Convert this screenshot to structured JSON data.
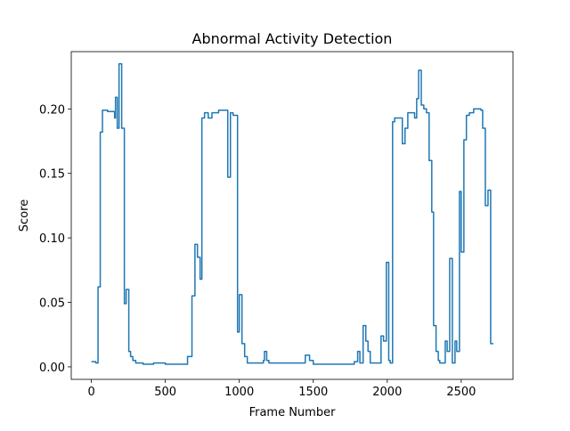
{
  "chart_data": {
    "type": "line",
    "title": "Abnormal Activity Detection",
    "x_label": "Frame Number",
    "y_label": "Score",
    "xlim": [
      -136,
      2850
    ],
    "ylim": [
      -0.0097,
      0.2444
    ],
    "xticks": [
      0,
      500,
      1000,
      1500,
      2000,
      2500
    ],
    "yticks": [
      {
        "value": 0,
        "label": "0.00"
      },
      {
        "value": 0.05,
        "label": "0.05"
      },
      {
        "value": 0.1,
        "label": "0.10"
      },
      {
        "value": 0.15,
        "label": "0.15"
      },
      {
        "value": 0.2,
        "label": "0.20"
      }
    ],
    "grid": false,
    "series": [
      {
        "color": "#1f77b4",
        "x": [
          0,
          30,
          30,
          45,
          45,
          60,
          60,
          75,
          75,
          110,
          110,
          157,
          157,
          163,
          163,
          175,
          175,
          187,
          187,
          205,
          205,
          223,
          223,
          235,
          235,
          253,
          253,
          265,
          265,
          280,
          280,
          300,
          300,
          350,
          350,
          420,
          420,
          500,
          500,
          650,
          650,
          680,
          680,
          700,
          700,
          717,
          717,
          735,
          735,
          747,
          747,
          765,
          765,
          790,
          790,
          815,
          815,
          860,
          860,
          922,
          922,
          940,
          940,
          958,
          958,
          988,
          988,
          1000,
          1000,
          1018,
          1018,
          1036,
          1036,
          1054,
          1054,
          1163,
          1163,
          1170,
          1170,
          1185,
          1185,
          1200,
          1200,
          1446,
          1446,
          1475,
          1475,
          1500,
          1500,
          1777,
          1777,
          1800,
          1800,
          1815,
          1815,
          1837,
          1837,
          1855,
          1855,
          1870,
          1870,
          1885,
          1885,
          1958,
          1958,
          1975,
          1975,
          1994,
          1994,
          2010,
          2010,
          2020,
          2020,
          2036,
          2036,
          2050,
          2050,
          2102,
          2102,
          2120,
          2120,
          2139,
          2139,
          2185,
          2185,
          2199,
          2199,
          2212,
          2212,
          2230,
          2230,
          2247,
          2247,
          2265,
          2265,
          2283,
          2283,
          2301,
          2301,
          2313,
          2313,
          2330,
          2330,
          2345,
          2345,
          2355,
          2355,
          2392,
          2392,
          2405,
          2405,
          2422,
          2422,
          2440,
          2440,
          2458,
          2458,
          2470,
          2470,
          2488,
          2488,
          2500,
          2500,
          2518,
          2518,
          2535,
          2535,
          2555,
          2555,
          2584,
          2584,
          2633,
          2633,
          2645,
          2645,
          2663,
          2663,
          2681,
          2681,
          2699,
          2699,
          2717
        ],
        "values": [
          0.004,
          0.004,
          0.003,
          0.003,
          0.062,
          0.062,
          0.182,
          0.182,
          0.199,
          0.199,
          0.198,
          0.198,
          0.193,
          0.193,
          0.209,
          0.209,
          0.185,
          0.185,
          0.235,
          0.235,
          0.185,
          0.185,
          0.049,
          0.049,
          0.06,
          0.06,
          0.012,
          0.012,
          0.008,
          0.008,
          0.005,
          0.005,
          0.003,
          0.003,
          0.002,
          0.002,
          0.003,
          0.003,
          0.002,
          0.002,
          0.008,
          0.008,
          0.055,
          0.055,
          0.095,
          0.095,
          0.085,
          0.085,
          0.068,
          0.068,
          0.193,
          0.193,
          0.197,
          0.197,
          0.193,
          0.193,
          0.197,
          0.197,
          0.199,
          0.199,
          0.147,
          0.147,
          0.197,
          0.197,
          0.195,
          0.195,
          0.027,
          0.027,
          0.056,
          0.056,
          0.018,
          0.018,
          0.008,
          0.008,
          0.003,
          0.003,
          0.005,
          0.005,
          0.012,
          0.012,
          0.005,
          0.005,
          0.003,
          0.003,
          0.009,
          0.009,
          0.005,
          0.005,
          0.002,
          0.002,
          0.004,
          0.004,
          0.012,
          0.012,
          0.003,
          0.003,
          0.032,
          0.032,
          0.02,
          0.02,
          0.012,
          0.012,
          0.003,
          0.003,
          0.024,
          0.024,
          0.02,
          0.02,
          0.081,
          0.081,
          0.005,
          0.005,
          0.003,
          0.003,
          0.19,
          0.19,
          0.193,
          0.193,
          0.173,
          0.173,
          0.185,
          0.185,
          0.197,
          0.197,
          0.193,
          0.193,
          0.208,
          0.208,
          0.23,
          0.23,
          0.203,
          0.203,
          0.2,
          0.2,
          0.197,
          0.197,
          0.16,
          0.16,
          0.12,
          0.12,
          0.032,
          0.032,
          0.012,
          0.012,
          0.005,
          0.005,
          0.003,
          0.003,
          0.02,
          0.02,
          0.012,
          0.012,
          0.084,
          0.084,
          0.003,
          0.003,
          0.02,
          0.02,
          0.012,
          0.012,
          0.136,
          0.136,
          0.089,
          0.089,
          0.176,
          0.176,
          0.195,
          0.195,
          0.197,
          0.197,
          0.2,
          0.2,
          0.199,
          0.199,
          0.185,
          0.185,
          0.125,
          0.125,
          0.137,
          0.137,
          0.018,
          0.018
        ]
      }
    ]
  }
}
